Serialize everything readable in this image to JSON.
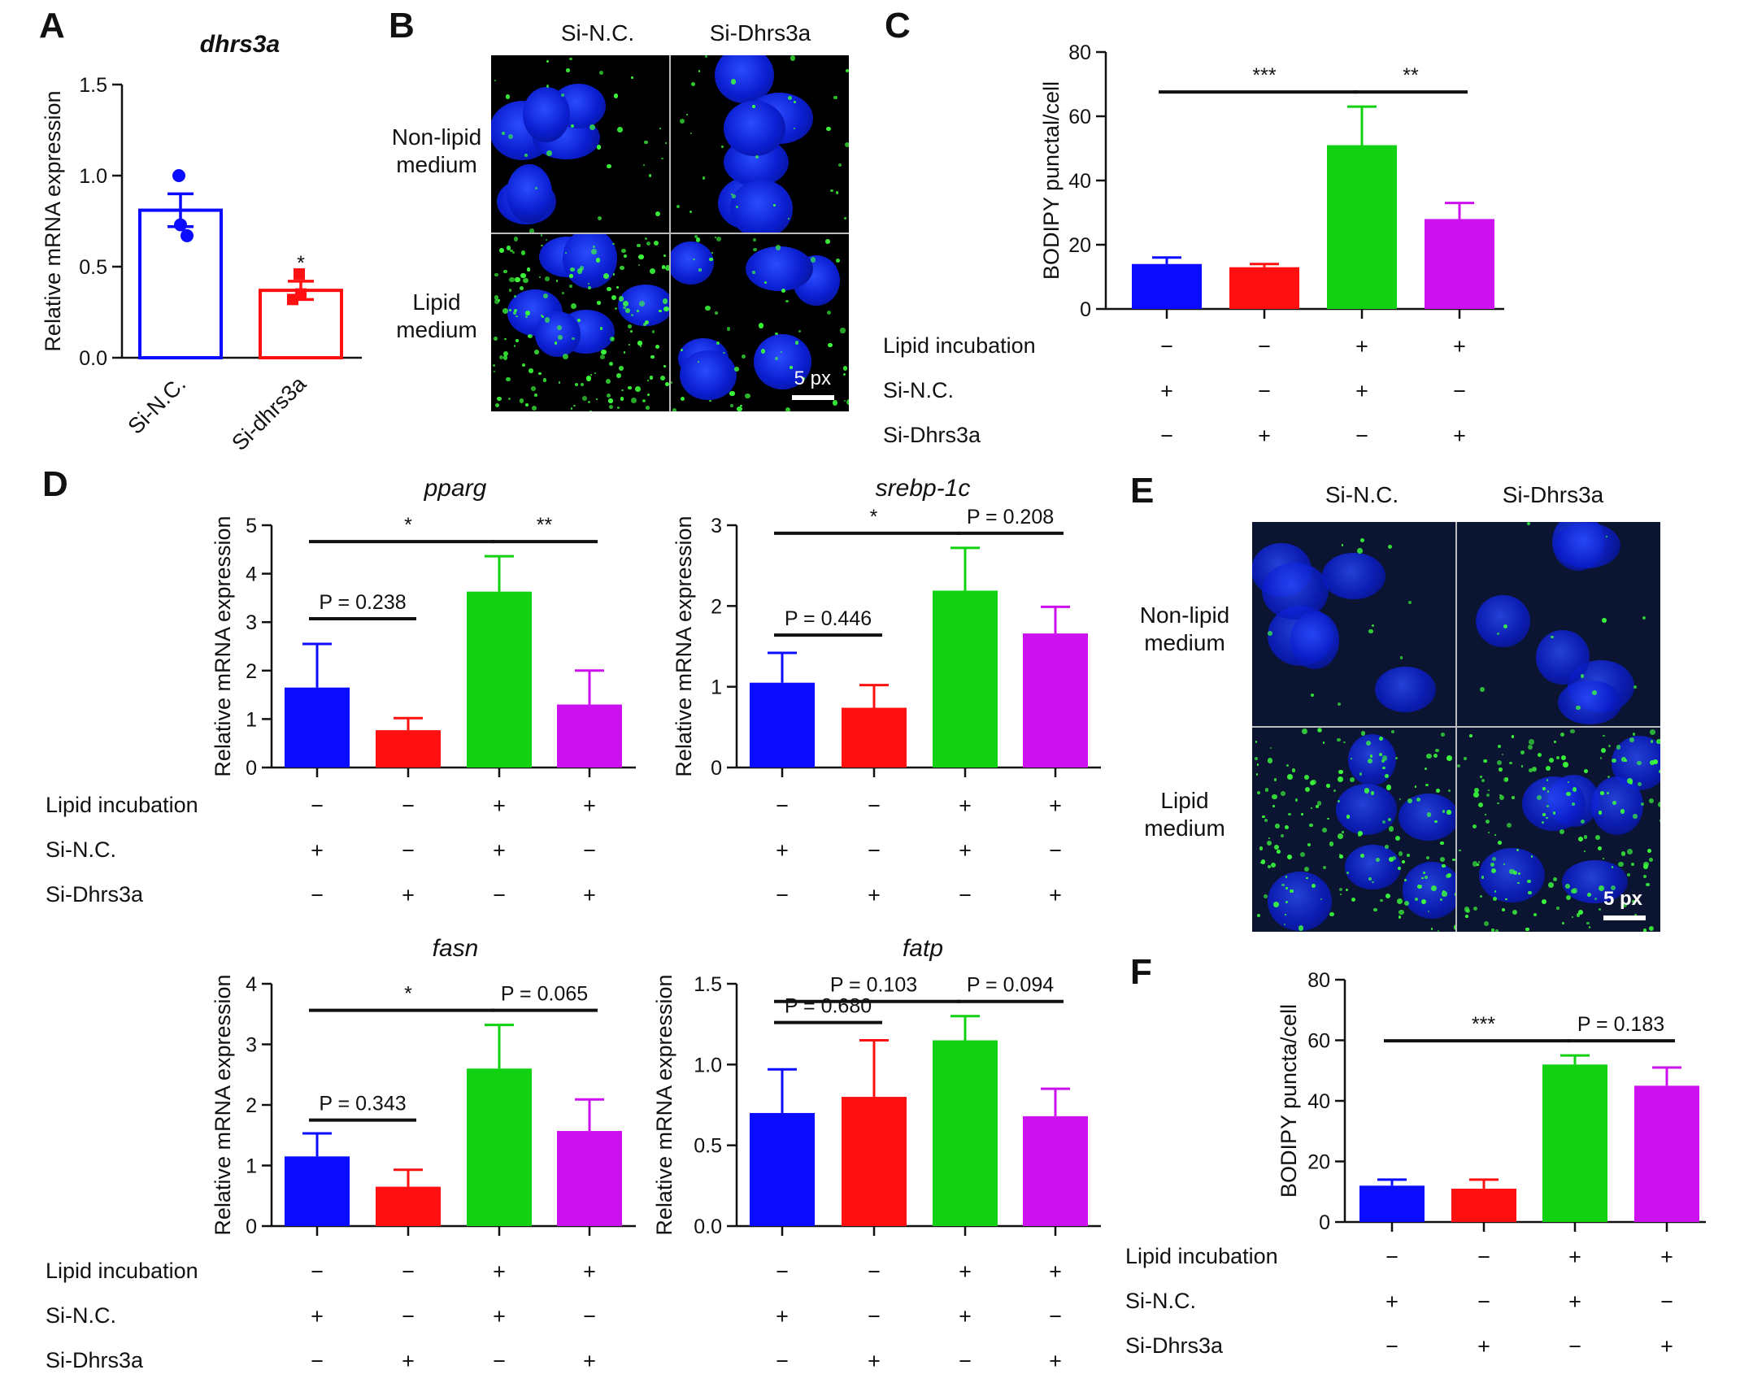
{
  "panels": {
    "A": "A",
    "B": "B",
    "C": "C",
    "D": "D",
    "E": "E",
    "F": "F"
  },
  "condition_labels": {
    "lipid": "Lipid  incubation",
    "sinc": "Si-N.C.",
    "sidh": "Si-Dhrs3a",
    "lipid_signs": [
      "−",
      "−",
      "+",
      "+"
    ],
    "sinc_signs": [
      "+",
      "−",
      "+",
      "−"
    ],
    "sidh_signs": [
      "−",
      "+",
      "−",
      "+"
    ]
  },
  "colors": {
    "blue": "#0b0bff",
    "red": "#ff1010",
    "green": "#12d012",
    "magenta": "#cc11ee"
  },
  "micrographs": {
    "B": {
      "col1": "Si-N.C.",
      "col2": "Si-Dhrs3a",
      "row1": "Non-lipid medium",
      "row2": "Lipid medium",
      "scale": "5 px"
    },
    "E": {
      "col1": "Si-N.C.",
      "col2": "Si-Dhrs3a",
      "row1": "Non-lipid medium",
      "row2": "Lipid medium",
      "scale": "5 px"
    }
  },
  "chart_data": [
    {
      "id": "A",
      "type": "bar",
      "title": "dhrs3a",
      "ylabel": "Relative mRNA expression",
      "categories": [
        "Si-N.C.",
        "Si-dhrs3a"
      ],
      "values": [
        0.81,
        0.37
      ],
      "errors": [
        0.09,
        0.05
      ],
      "points": [
        [
          1.0,
          0.73,
          0.67
        ],
        [
          0.46,
          0.35,
          0.32
        ]
      ],
      "ylim": [
        0,
        1.5
      ],
      "yticks": [
        "0.0",
        "0.5",
        "1.0",
        "1.5"
      ],
      "style": "open",
      "significance": [
        "*"
      ]
    },
    {
      "id": "C",
      "type": "bar",
      "title": "",
      "ylabel": "BODIPY punctal/cell",
      "values": [
        14,
        13,
        51,
        28
      ],
      "errors": [
        2,
        1,
        12,
        5
      ],
      "ylim": [
        0,
        80
      ],
      "yticks": [
        "0",
        "20",
        "40",
        "60",
        "80"
      ],
      "significance": [
        {
          "from": 0,
          "to": 2,
          "label": "***"
        },
        {
          "from": 2,
          "to": 3,
          "label": "**"
        }
      ]
    },
    {
      "id": "D1",
      "type": "bar",
      "title": "pparg",
      "ylabel": "Relative mRNA expression",
      "values": [
        1.65,
        0.77,
        3.63,
        1.3
      ],
      "errors": [
        0.9,
        0.25,
        0.73,
        0.7
      ],
      "ylim": [
        0,
        5
      ],
      "yticks": [
        "0",
        "1",
        "2",
        "3",
        "4",
        "5"
      ],
      "significance": [
        {
          "from": 0,
          "to": 2,
          "label": "*"
        },
        {
          "from": 2,
          "to": 3,
          "label": "**"
        },
        {
          "from": 0,
          "to": 1,
          "label": "P = 0.238"
        }
      ]
    },
    {
      "id": "D2",
      "type": "bar",
      "title": "srebp-1c",
      "ylabel": "Relative mRNA expression",
      "values": [
        1.05,
        0.74,
        2.19,
        1.66
      ],
      "errors": [
        0.37,
        0.28,
        0.53,
        0.33
      ],
      "ylim": [
        0,
        3
      ],
      "yticks": [
        "0",
        "1",
        "2",
        "3"
      ],
      "significance": [
        {
          "from": 0,
          "to": 2,
          "label": "*"
        },
        {
          "from": 2,
          "to": 3,
          "label": "P = 0.208"
        },
        {
          "from": 0,
          "to": 1,
          "label": "P = 0.446"
        }
      ]
    },
    {
      "id": "D3",
      "type": "bar",
      "title": "fasn",
      "ylabel": "Relative mRNA expression",
      "values": [
        1.15,
        0.65,
        2.6,
        1.57
      ],
      "errors": [
        0.38,
        0.28,
        0.72,
        0.52
      ],
      "ylim": [
        0,
        4
      ],
      "yticks": [
        "0",
        "1",
        "2",
        "3",
        "4"
      ],
      "significance": [
        {
          "from": 0,
          "to": 2,
          "label": "*"
        },
        {
          "from": 2,
          "to": 3,
          "label": "P = 0.065"
        },
        {
          "from": 0,
          "to": 1,
          "label": "P = 0.343"
        }
      ]
    },
    {
      "id": "D4",
      "type": "bar",
      "title": "fatp",
      "ylabel": "Relative mRNA expression",
      "values": [
        0.7,
        0.8,
        1.15,
        0.68
      ],
      "errors": [
        0.27,
        0.35,
        0.15,
        0.17
      ],
      "ylim": [
        0,
        1.5
      ],
      "yticks": [
        "0.0",
        "0.5",
        "1.0",
        "1.5"
      ],
      "significance": [
        {
          "from": 0,
          "to": 2,
          "label": "P = 0.103"
        },
        {
          "from": 2,
          "to": 3,
          "label": "P = 0.094"
        },
        {
          "from": 0,
          "to": 1,
          "label": "P = 0.680"
        }
      ]
    },
    {
      "id": "F",
      "type": "bar",
      "title": "",
      "ylabel": "BODIPY puncta/cell",
      "values": [
        12,
        11,
        52,
        45
      ],
      "errors": [
        2,
        3,
        3,
        6
      ],
      "ylim": [
        0,
        80
      ],
      "yticks": [
        "0",
        "20",
        "40",
        "60",
        "80"
      ],
      "significance": [
        {
          "from": 0,
          "to": 2,
          "label": "***"
        },
        {
          "from": 2,
          "to": 3,
          "label": "P = 0.183"
        }
      ]
    }
  ]
}
